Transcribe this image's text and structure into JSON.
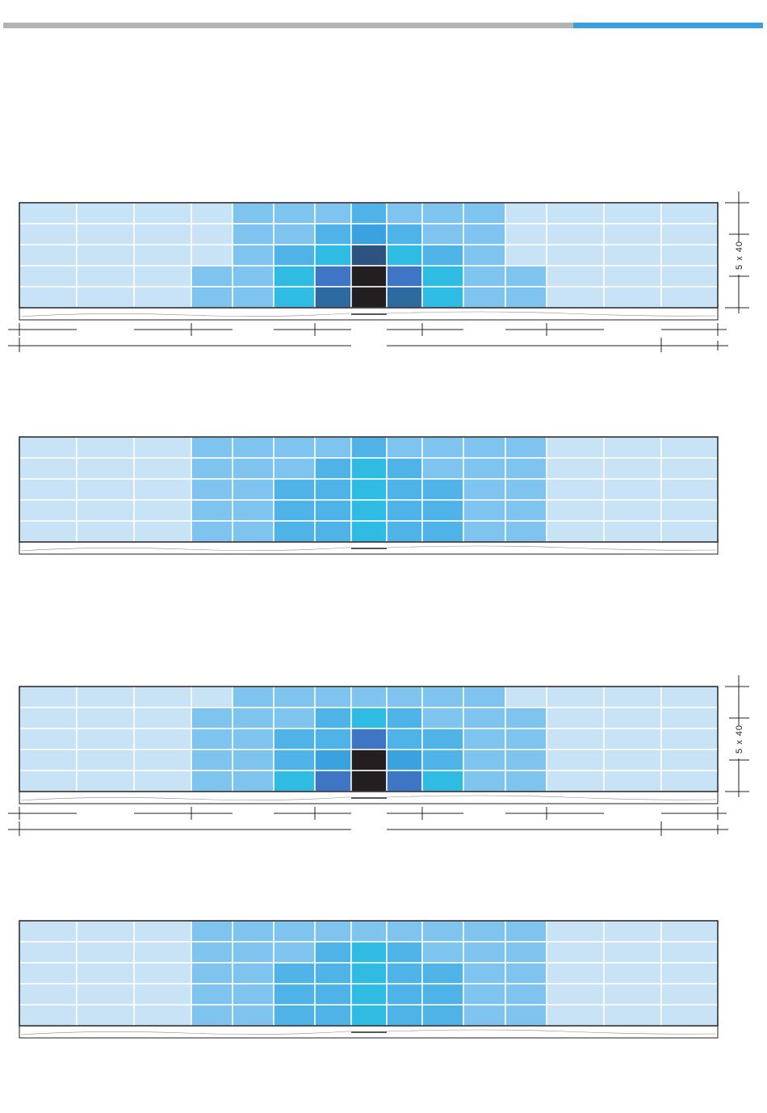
{
  "colors": {
    "top_bar_gray": "#b3b3b3",
    "top_bar_blue": "#3aa0dc",
    "border": "#231f20",
    "cell_gap": "#ffffff",
    "palette": {
      "a": "#c9e3f6",
      "b": "#7fc4ee",
      "c": "#4fb3e8",
      "d": "#2fbbe2",
      "e": "#3aa2de",
      "f": "#3e75c4",
      "g": "#2e6aa0",
      "h": "#2f5380",
      "k": "#231f20"
    }
  },
  "top_bar": {
    "highlight_fraction": 0.25
  },
  "panels": [
    {
      "id": "panel-1",
      "dimensions": true,
      "dimension_label": "5 x 40",
      "rows": [
        "aaaabbbcbbbaaaa",
        "aaaabbcecbbaaaa",
        "aaaabcdhdcbaaaa",
        "aaabbdfkfdbbaaa",
        "aaabbdgkgdbbaaa"
      ]
    },
    {
      "id": "panel-2",
      "dimensions": false,
      "rows": [
        "aaabbbbcbbbbaaa",
        "aaabbbcdcbbbaaa",
        "aaabbccdccbbaaa",
        "aaabbccdccbbaaa",
        "aaabbccdccbbaaa"
      ]
    },
    {
      "id": "panel-3",
      "dimensions": true,
      "dimension_label": "5 x 40",
      "rows": [
        "aaaabbbbbbbaaaa",
        "aaabbbcdcbbbaaa",
        "aaabbccfccbbaaa",
        "aaabbcekecbbaaa",
        "aaabbdfkfdbbaaa"
      ]
    },
    {
      "id": "panel-4",
      "dimensions": false,
      "rows": [
        "aaabbbbbbbbbaaa",
        "aaabbbcdcbbbaaa",
        "aaabbccdccbbaaa",
        "aaabbccdccbbaaa",
        "aaabbccdccbbaaa"
      ]
    }
  ]
}
